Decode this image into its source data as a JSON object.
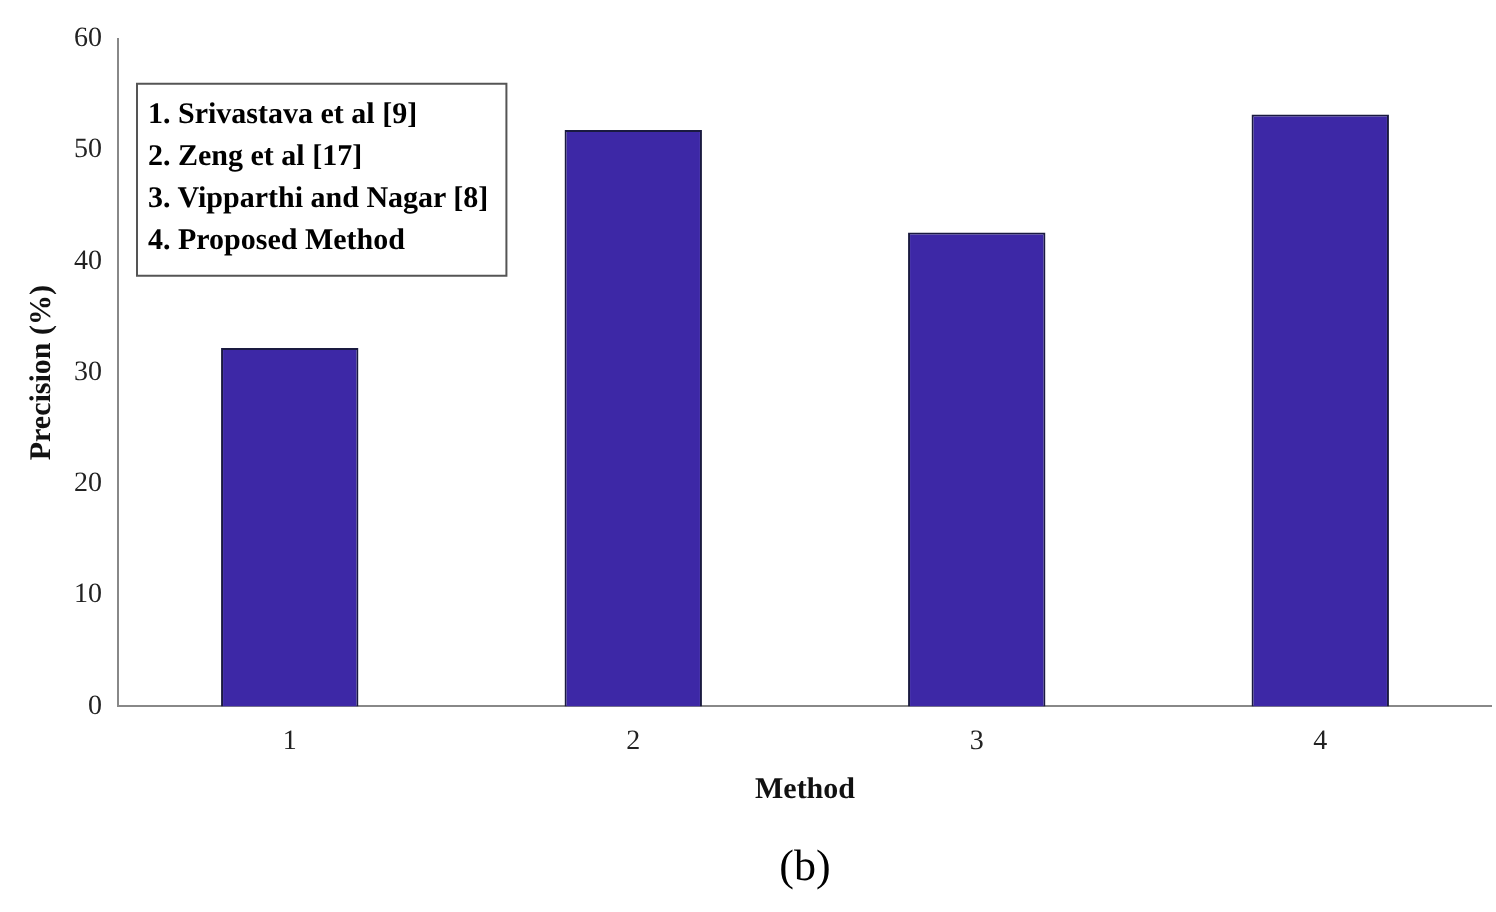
{
  "chart_data": {
    "type": "bar",
    "xlabel": "Method",
    "ylabel": "Precision (%)",
    "categories": [
      "1",
      "2",
      "3",
      "4"
    ],
    "values": [
      32.2,
      51.8,
      42.6,
      53.2
    ],
    "color": "#3d28a6",
    "ylim": [
      0,
      60
    ],
    "yticks": [
      0,
      10,
      20,
      30,
      40,
      50,
      60
    ],
    "grid": false,
    "legend": false,
    "annotations": [
      "1. Srivastava et al [9]",
      "2. Zeng et al [17]",
      "3. Vipparthi and Nagar [8]",
      "4. Proposed Method",
      "(b)"
    ]
  }
}
